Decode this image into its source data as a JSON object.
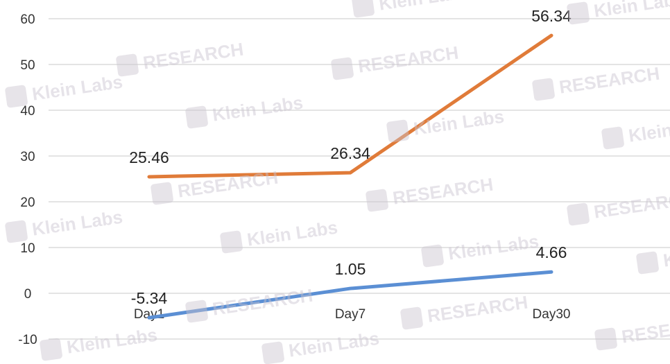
{
  "watermark": {
    "brand": "Klein Labs",
    "tag": "RESEARCH",
    "icon": "k1-logo-icon"
  },
  "chart_data": {
    "type": "line",
    "title": "",
    "xlabel": "",
    "ylabel": "",
    "categories": [
      "Day1",
      "Day7",
      "Day30"
    ],
    "series": [
      {
        "color": "#E07B39",
        "values": [
          25.46,
          26.34,
          56.34
        ],
        "labels": [
          "25.46",
          "26.34",
          "56.34"
        ]
      },
      {
        "color": "#5B8FD4",
        "values": [
          -5.34,
          1.05,
          4.66
        ],
        "labels": [
          "-5.34",
          "1.05",
          "4.66"
        ]
      }
    ],
    "ylim": [
      -10,
      60
    ],
    "yticks": [
      "-10",
      "0",
      "10",
      "20",
      "30",
      "40",
      "50",
      "60"
    ],
    "grid": true,
    "legend": "none"
  }
}
